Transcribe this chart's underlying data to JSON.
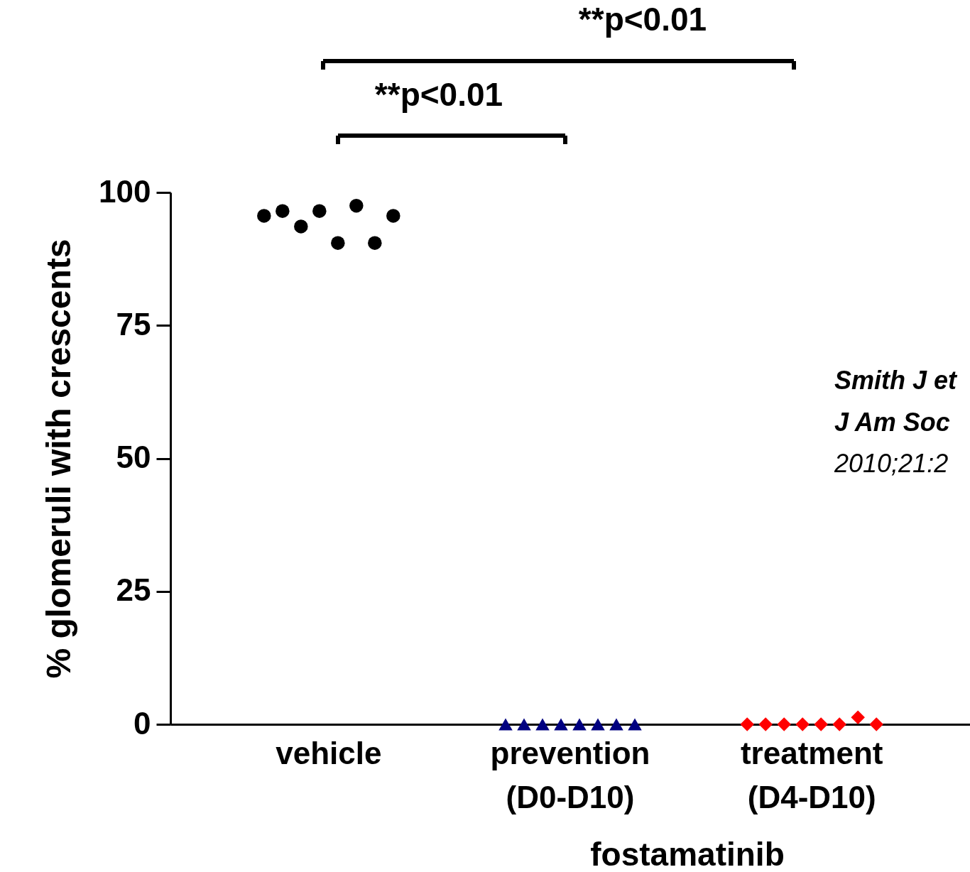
{
  "chart_data": {
    "type": "scatter",
    "ylabel": "% glomeruli with crescents",
    "xlabel": "fostamatinib",
    "categories": [
      "vehicle",
      "prevention\n(D0-D10)",
      "treatment\n(D4-D10)"
    ],
    "ylim": [
      0,
      100
    ],
    "yticks": [
      0,
      25,
      50,
      75,
      100
    ],
    "grid": false,
    "legend": false,
    "series": [
      {
        "x": [
          "vehicle",
          "vehicle",
          "vehicle",
          "vehicle",
          "vehicle",
          "vehicle",
          "vehicle",
          "vehicle"
        ],
        "values": [
          95.6,
          96.5,
          93.6,
          96.5,
          90.5,
          97.5,
          90.5,
          95.6
        ],
        "color": "#000000",
        "marker": "circle"
      },
      {
        "x": [
          "prevention\n(D0-D10)",
          "prevention\n(D0-D10)",
          "prevention\n(D0-D10)",
          "prevention\n(D0-D10)",
          "prevention\n(D0-D10)",
          "prevention\n(D0-D10)",
          "prevention\n(D0-D10)",
          "prevention\n(D0-D10)"
        ],
        "values": [
          0,
          0,
          0,
          0,
          0,
          0,
          0,
          0
        ],
        "color": "#000080",
        "marker": "triangle"
      },
      {
        "x": [
          "treatment\n(D4-D10)",
          "treatment\n(D4-D10)",
          "treatment\n(D4-D10)",
          "treatment\n(D4-D10)",
          "treatment\n(D4-D10)",
          "treatment\n(D4-D10)",
          "treatment\n(D4-D10)",
          "treatment\n(D4-D10)"
        ],
        "values": [
          0,
          0,
          0,
          0,
          0,
          0,
          1.3,
          0
        ],
        "color": "#ff0000",
        "marker": "diamond"
      }
    ],
    "annotations": [
      "**p<0.01",
      "**p<0.01",
      "Smith J et",
      "J Am Soc",
      "2010;21:2"
    ]
  }
}
